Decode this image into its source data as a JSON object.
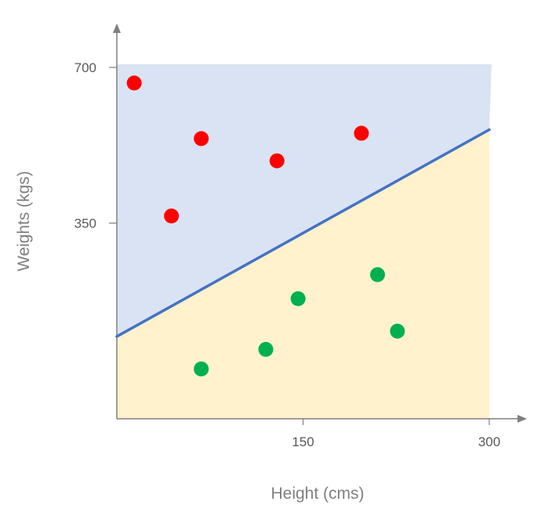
{
  "chart_data": {
    "type": "scatter",
    "title": "",
    "xlabel": "Height (cms)",
    "ylabel": "Weights (kgs)",
    "xlim": [
      0,
      300
    ],
    "ylim": [
      -90,
      700
    ],
    "x_ticks": [
      150,
      300
    ],
    "x_tick_labels": [
      "150",
      "300"
    ],
    "y_ticks": [
      350,
      700
    ],
    "y_tick_labels": [
      "350",
      "700"
    ],
    "grid": false,
    "legend": "none",
    "series": [
      {
        "color": "#ff0000",
        "points": [
          {
            "x": 14,
            "y": 665
          },
          {
            "x": 68,
            "y": 540
          },
          {
            "x": 129,
            "y": 490
          },
          {
            "x": 197,
            "y": 552
          },
          {
            "x": 44,
            "y": 366
          }
        ]
      },
      {
        "color": "#00b050",
        "points": [
          {
            "x": 210,
            "y": 234
          },
          {
            "x": 146,
            "y": 180
          },
          {
            "x": 226,
            "y": 107
          },
          {
            "x": 120,
            "y": 66
          },
          {
            "x": 68,
            "y": 22
          }
        ]
      }
    ],
    "decision_boundary": {
      "color": "#4472c4",
      "x": [
        0,
        300
      ],
      "y": [
        95,
        560
      ]
    },
    "regions": {
      "above_color": "#dae3f3",
      "below_color": "#fff2cc"
    },
    "axis_color": "#7f7f7f"
  }
}
